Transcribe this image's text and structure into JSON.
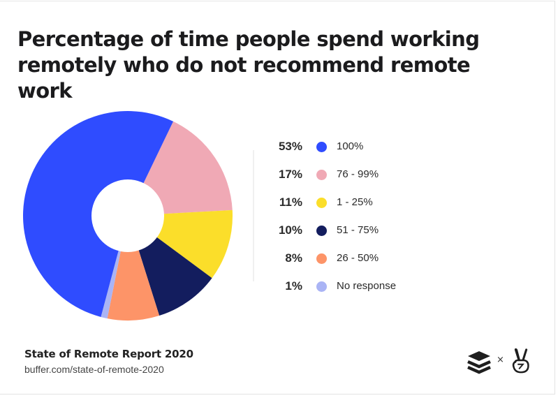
{
  "title": "Percentage of time people spend working remotely who do not recommend remote work",
  "legend": [
    {
      "pct": "53%",
      "label": "100%",
      "color": "#2f4cff"
    },
    {
      "pct": "17%",
      "label": "76 - 99%",
      "color": "#f0a9b5"
    },
    {
      "pct": "11%",
      "label": "1 - 25%",
      "color": "#fbde2a"
    },
    {
      "pct": "10%",
      "label": "51 - 75%",
      "color": "#131d5e"
    },
    {
      "pct": "8%",
      "label": "26 - 50%",
      "color": "#fd9468"
    },
    {
      "pct": "1%",
      "label": "No response",
      "color": "#aab4f5"
    }
  ],
  "footer": {
    "title": "State of Remote Report 2020",
    "url": "buffer.com/state-of-remote-2020",
    "times": "×"
  },
  "icons": {
    "left_logo": "buffer-stack-icon",
    "right_logo": "peace-hand-icon"
  },
  "chart_data": {
    "type": "pie",
    "donut": true,
    "title": "Percentage of time people spend working remotely who do not recommend remote work",
    "categories": [
      "100%",
      "76 - 99%",
      "1 - 25%",
      "51 - 75%",
      "26 - 50%",
      "No response"
    ],
    "values": [
      53,
      17,
      11,
      10,
      8,
      1
    ],
    "colors": [
      "#2f4cff",
      "#f0a9b5",
      "#fbde2a",
      "#131d5e",
      "#fd9468",
      "#aab4f5"
    ],
    "draw_order": [
      "76 - 99%",
      "1 - 25%",
      "51 - 75%",
      "26 - 50%",
      "No response",
      "100%"
    ],
    "start_angle_deg": 25.7,
    "legend_position": "right",
    "source": "State of Remote Report 2020"
  }
}
